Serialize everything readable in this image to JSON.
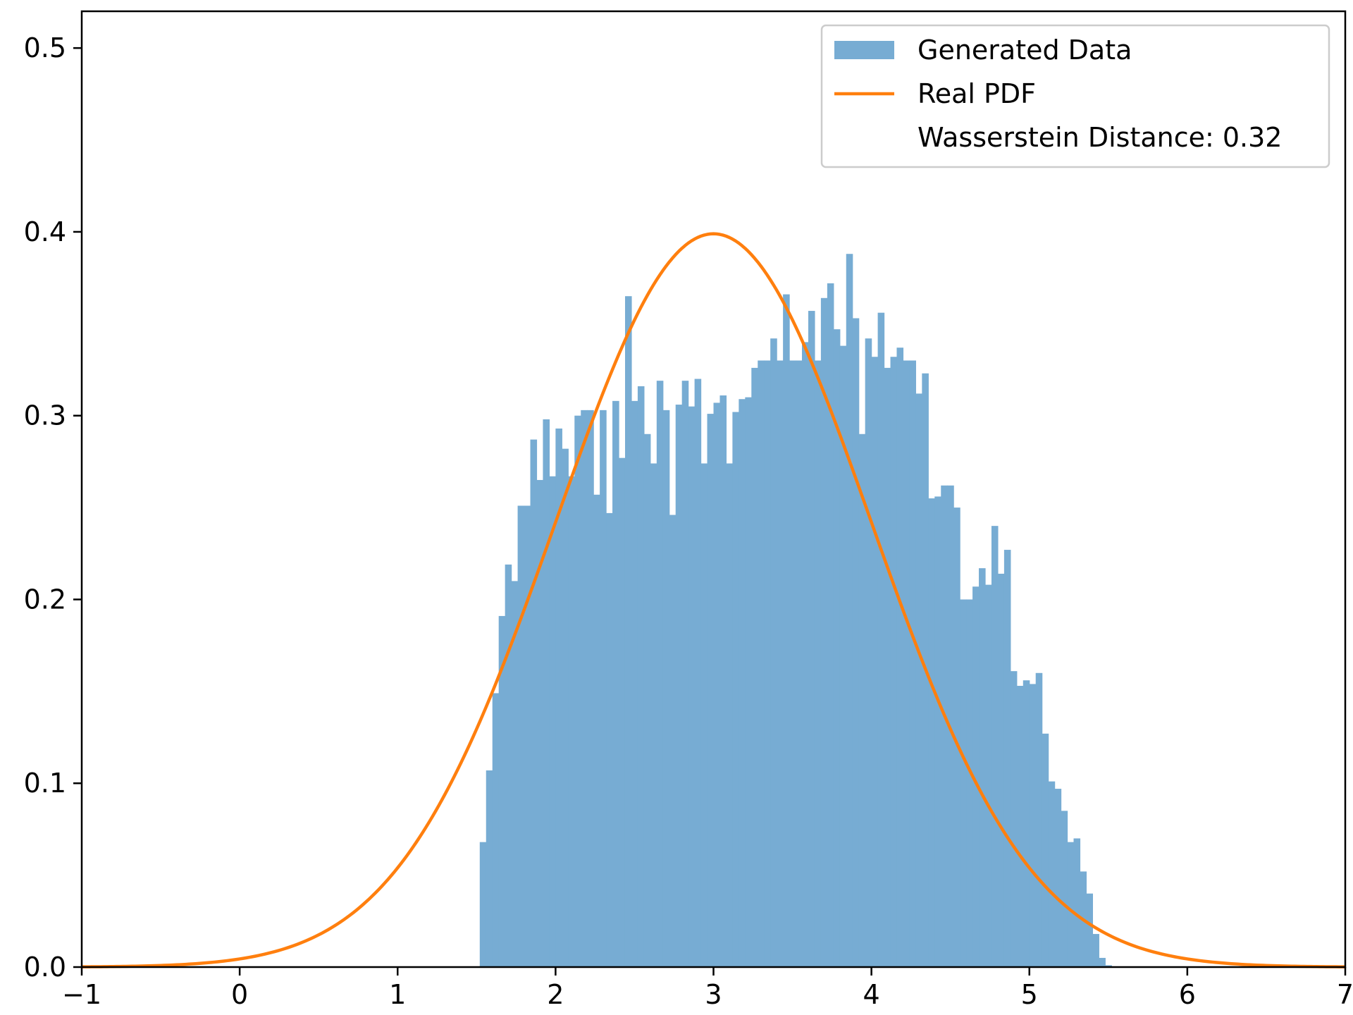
{
  "chart_data": {
    "type": "bar",
    "title": "",
    "xlabel": "",
    "ylabel": "",
    "xlim": [
      -1,
      7
    ],
    "ylim": [
      0,
      0.52
    ],
    "grid": false,
    "legend_placement": "top-right",
    "x_ticks": [
      -1,
      0,
      1,
      2,
      3,
      4,
      5,
      6,
      7
    ],
    "x_tick_labels": [
      "−1",
      "0",
      "1",
      "2",
      "3",
      "4",
      "5",
      "6",
      "7"
    ],
    "y_ticks": [
      0.0,
      0.1,
      0.2,
      0.3,
      0.4,
      0.5
    ],
    "y_tick_labels": [
      "0.0",
      "0.1",
      "0.2",
      "0.3",
      "0.4",
      "0.5"
    ],
    "histogram": {
      "name": "Generated Data",
      "color": "#77acd3",
      "bin_start": 1.52,
      "bin_width": 0.04,
      "values": [
        0.068,
        0.107,
        0.149,
        0.191,
        0.219,
        0.21,
        0.251,
        0.251,
        0.287,
        0.265,
        0.298,
        0.267,
        0.293,
        0.282,
        0.267,
        0.3,
        0.303,
        0.303,
        0.257,
        0.303,
        0.247,
        0.308,
        0.277,
        0.365,
        0.308,
        0.316,
        0.29,
        0.274,
        0.319,
        0.303,
        0.246,
        0.306,
        0.319,
        0.305,
        0.32,
        0.274,
        0.301,
        0.307,
        0.311,
        0.274,
        0.302,
        0.309,
        0.31,
        0.326,
        0.33,
        0.33,
        0.342,
        0.33,
        0.366,
        0.33,
        0.33,
        0.34,
        0.357,
        0.33,
        0.364,
        0.372,
        0.347,
        0.338,
        0.388,
        0.353,
        0.29,
        0.342,
        0.332,
        0.356,
        0.326,
        0.332,
        0.337,
        0.33,
        0.33,
        0.312,
        0.323,
        0.255,
        0.256,
        0.262,
        0.262,
        0.25,
        0.2,
        0.2,
        0.207,
        0.217,
        0.208,
        0.24,
        0.214,
        0.227,
        0.161,
        0.153,
        0.156,
        0.154,
        0.16,
        0.127,
        0.101,
        0.097,
        0.085,
        0.068,
        0.07,
        0.052,
        0.04,
        0.018,
        0.005,
        0.001
      ]
    },
    "series": [
      {
        "name": "Real PDF",
        "color": "#ff7f0e",
        "type": "line",
        "mean": 3,
        "std": 1
      }
    ],
    "legend": [
      {
        "label": "Generated Data",
        "kind": "patch",
        "color": "#77acd3"
      },
      {
        "label": "Real PDF",
        "kind": "line",
        "color": "#ff7f0e"
      },
      {
        "label": "Wasserstein Distance: 0.32",
        "kind": "none"
      }
    ]
  }
}
